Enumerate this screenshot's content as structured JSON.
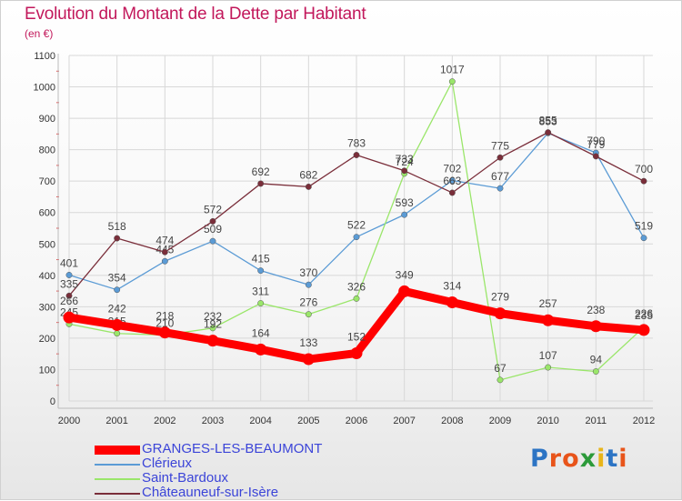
{
  "title": "Evolution du Montant de la Dette par Habitant",
  "subtitle": "(en €)",
  "logo": {
    "text": "Proxiti",
    "letter_colors": [
      "#2c74c4",
      "#e8541a",
      "#e8541a",
      "#2c9a3a",
      "#e8b51a",
      "#2c74c4",
      "#e8541a"
    ]
  },
  "chart_data": {
    "type": "line",
    "x": [
      "2000",
      "2001",
      "2002",
      "2003",
      "2004",
      "2005",
      "2006",
      "2007",
      "2008",
      "2009",
      "2010",
      "2011",
      "2012"
    ],
    "ylim": [
      0,
      1100
    ],
    "yticks": [
      0,
      100,
      200,
      300,
      400,
      500,
      600,
      700,
      800,
      900,
      1000,
      1100
    ],
    "grid": true,
    "legend_position": "bottom-left",
    "series": [
      {
        "name": "GRANGES-LES-BEAUMONT",
        "color": "#ff0000",
        "values": [
          266,
          242,
          218,
          192,
          164,
          133,
          152,
          349,
          314,
          279,
          257,
          238,
          226
        ],
        "emphasis": true
      },
      {
        "name": "Clérieux",
        "color": "#5b9bd5",
        "values": [
          401,
          354,
          445,
          509,
          415,
          370,
          522,
          593,
          702,
          677,
          853,
          790,
          519
        ]
      },
      {
        "name": "Saint-Bardoux",
        "color": "#9ae66a",
        "values": [
          245,
          215,
          210,
          232,
          311,
          276,
          326,
          724,
          1017,
          67,
          107,
          94,
          235
        ]
      },
      {
        "name": "Châteauneuf-sur-Isère",
        "color": "#7a2e3a",
        "values": [
          335,
          518,
          474,
          572,
          692,
          682,
          783,
          733,
          663,
          775,
          855,
          779,
          700
        ]
      }
    ]
  }
}
